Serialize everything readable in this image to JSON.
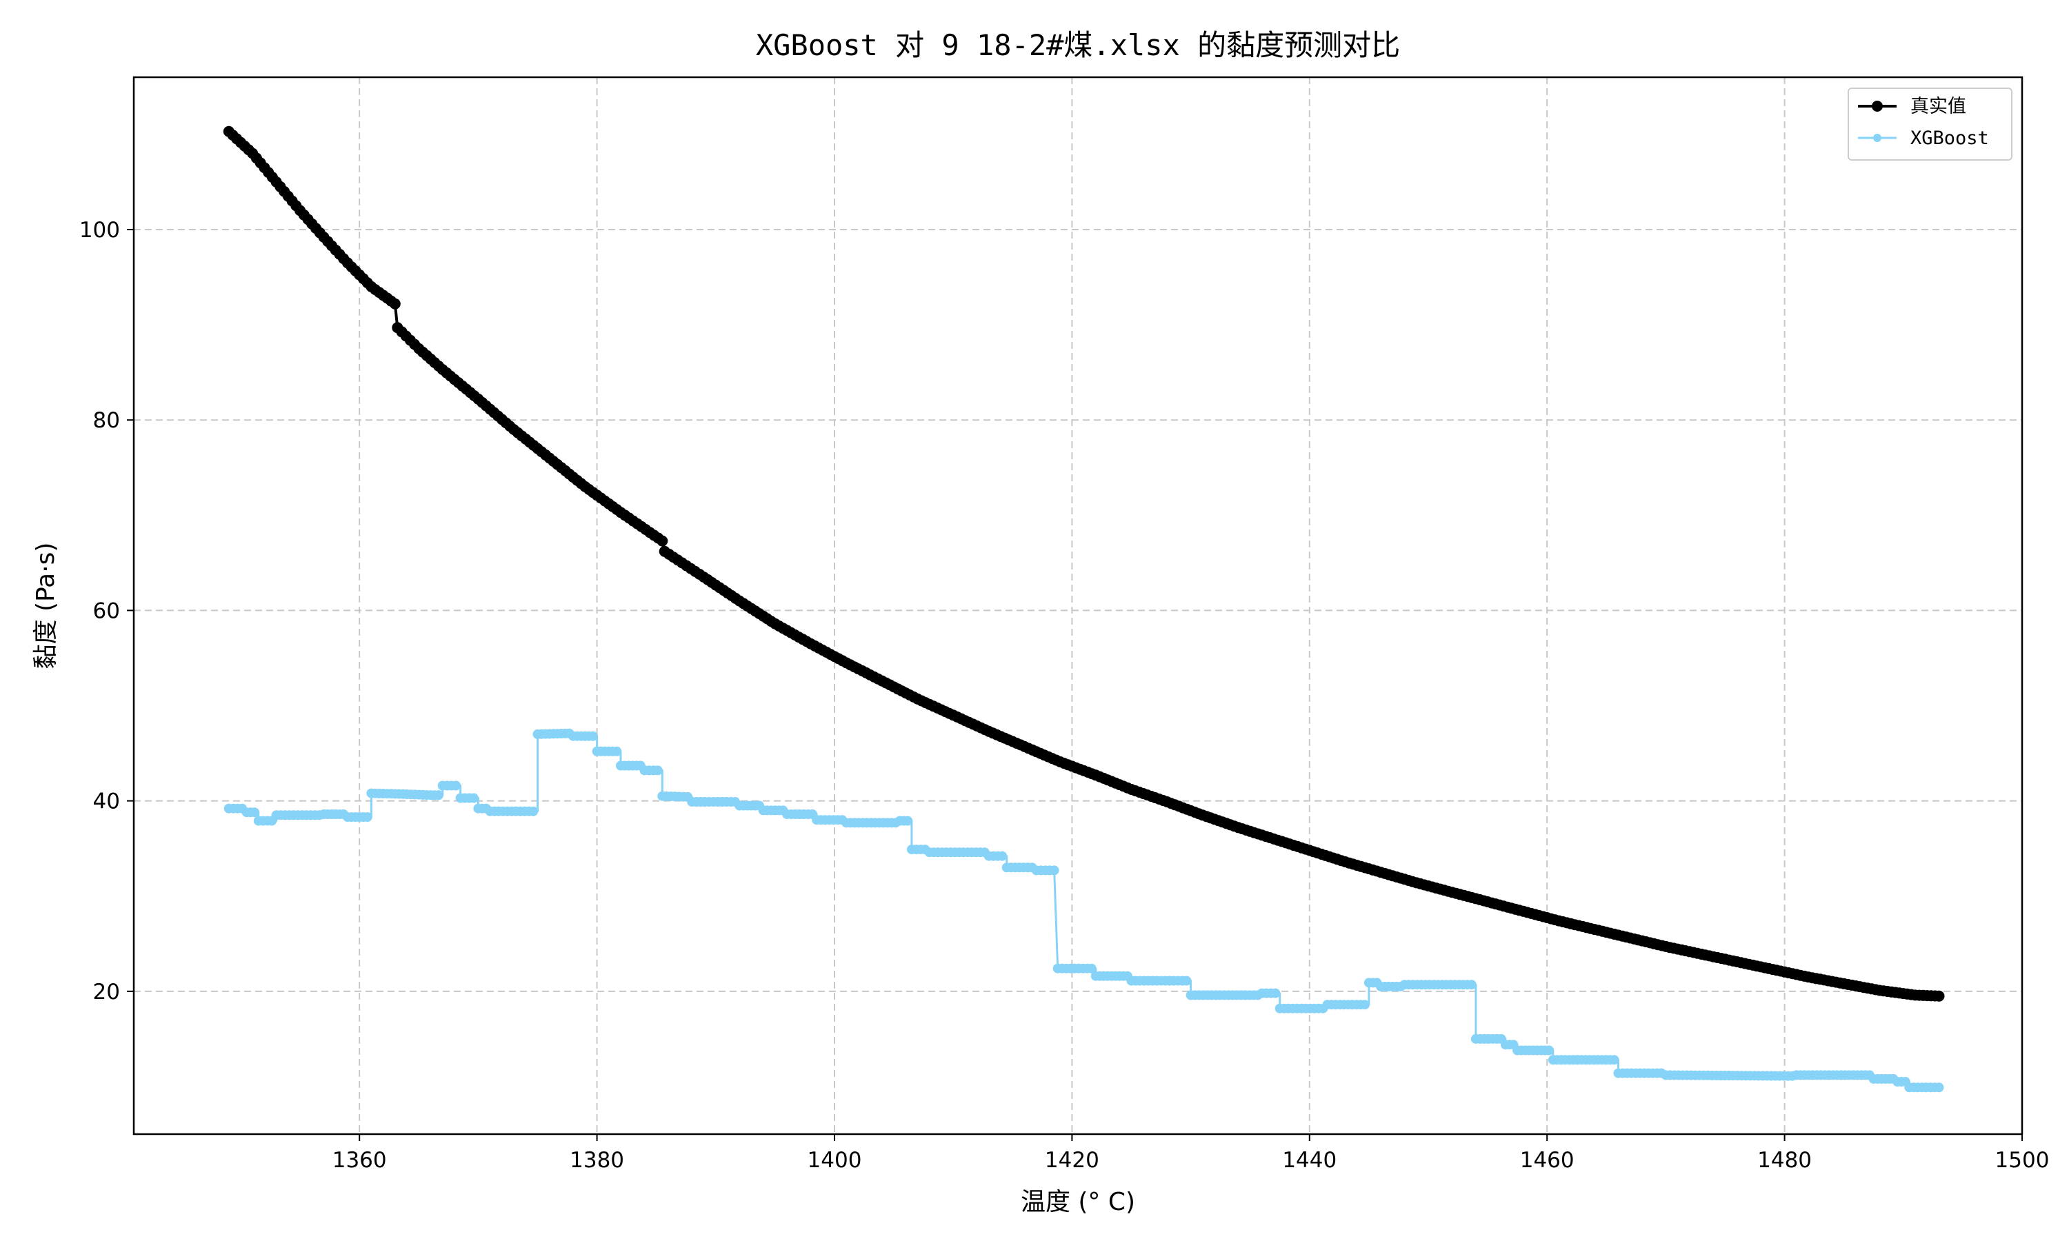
{
  "chart_data": {
    "type": "line",
    "title": "XGBoost 对 9 18-2#煤.xlsx 的黏度预测对比",
    "xlabel": "温度 (° C)",
    "ylabel": "黏度 (Pa·s)",
    "xlim": [
      1341,
      1500
    ],
    "ylim": [
      5,
      116
    ],
    "xticks": [
      1360,
      1380,
      1400,
      1420,
      1440,
      1460,
      1480,
      1500
    ],
    "yticks": [
      20,
      40,
      60,
      80,
      100
    ],
    "grid": true,
    "legend_position": "top-right",
    "series": [
      {
        "name": "真实值",
        "color": "#000000",
        "points": [
          [
            1349,
            110.3
          ],
          [
            1351,
            108
          ],
          [
            1353,
            105
          ],
          [
            1355,
            102
          ],
          [
            1357,
            99.2
          ],
          [
            1359,
            96.5
          ],
          [
            1361,
            94
          ],
          [
            1363,
            92.2
          ],
          [
            1363.2,
            89.7
          ],
          [
            1365,
            87.5
          ],
          [
            1367,
            85.3
          ],
          [
            1370,
            82.2
          ],
          [
            1373,
            79
          ],
          [
            1376,
            76
          ],
          [
            1379,
            73
          ],
          [
            1382,
            70.3
          ],
          [
            1385.5,
            67.3
          ],
          [
            1385.7,
            66.2
          ],
          [
            1389,
            63.5
          ],
          [
            1392,
            61
          ],
          [
            1395,
            58.6
          ],
          [
            1398,
            56.5
          ],
          [
            1401,
            54.5
          ],
          [
            1404,
            52.6
          ],
          [
            1407,
            50.7
          ],
          [
            1410,
            49
          ],
          [
            1413,
            47.3
          ],
          [
            1416,
            45.7
          ],
          [
            1419,
            44.1
          ],
          [
            1422,
            42.7
          ],
          [
            1425,
            41.2
          ],
          [
            1428,
            39.9
          ],
          [
            1431,
            38.5
          ],
          [
            1434,
            37.2
          ],
          [
            1437,
            36
          ],
          [
            1440,
            34.8
          ],
          [
            1443,
            33.6
          ],
          [
            1446,
            32.5
          ],
          [
            1449,
            31.4
          ],
          [
            1452,
            30.4
          ],
          [
            1455,
            29.4
          ],
          [
            1458,
            28.4
          ],
          [
            1461,
            27.4
          ],
          [
            1464,
            26.5
          ],
          [
            1467,
            25.6
          ],
          [
            1470,
            24.7
          ],
          [
            1473,
            23.9
          ],
          [
            1476,
            23.1
          ],
          [
            1479,
            22.3
          ],
          [
            1482,
            21.5
          ],
          [
            1485,
            20.8
          ],
          [
            1488,
            20.1
          ],
          [
            1491,
            19.6
          ],
          [
            1493,
            19.5
          ]
        ]
      },
      {
        "name": "XGBoost",
        "color": "#87d3f8",
        "points": [
          [
            1349,
            39.2
          ],
          [
            1350.5,
            39.2
          ],
          [
            1350.5,
            38.8
          ],
          [
            1351.5,
            38.8
          ],
          [
            1351.5,
            37.9
          ],
          [
            1353,
            37.9
          ],
          [
            1353,
            38.5
          ],
          [
            1357,
            38.5
          ],
          [
            1357,
            38.6
          ],
          [
            1359,
            38.6
          ],
          [
            1359,
            38.3
          ],
          [
            1361,
            38.3
          ],
          [
            1361,
            40.8
          ],
          [
            1364,
            40.7
          ],
          [
            1366,
            40.6
          ],
          [
            1367,
            40.6
          ],
          [
            1367,
            41.6
          ],
          [
            1368.5,
            41.6
          ],
          [
            1368.5,
            40.3
          ],
          [
            1370,
            40.3
          ],
          [
            1370,
            39.2
          ],
          [
            1371,
            39.2
          ],
          [
            1371,
            38.9
          ],
          [
            1375,
            38.9
          ],
          [
            1375,
            47.0
          ],
          [
            1378,
            47.1
          ],
          [
            1378,
            46.8
          ],
          [
            1380,
            46.8
          ],
          [
            1380,
            45.2
          ],
          [
            1382,
            45.2
          ],
          [
            1382,
            43.7
          ],
          [
            1384,
            43.7
          ],
          [
            1384,
            43.2
          ],
          [
            1385.5,
            43.2
          ],
          [
            1385.5,
            40.5
          ],
          [
            1388,
            40.4
          ],
          [
            1388,
            39.9
          ],
          [
            1392,
            39.9
          ],
          [
            1392,
            39.5
          ],
          [
            1394,
            39.5
          ],
          [
            1394,
            39.0
          ],
          [
            1396,
            39.0
          ],
          [
            1396,
            38.6
          ],
          [
            1398.5,
            38.6
          ],
          [
            1398.5,
            38.0
          ],
          [
            1401,
            38.0
          ],
          [
            1401,
            37.7
          ],
          [
            1405.5,
            37.7
          ],
          [
            1405.5,
            37.9
          ],
          [
            1406.5,
            37.9
          ],
          [
            1406.5,
            34.9
          ],
          [
            1408,
            34.9
          ],
          [
            1408,
            34.6
          ],
          [
            1413,
            34.6
          ],
          [
            1413,
            34.2
          ],
          [
            1414.5,
            34.2
          ],
          [
            1414.5,
            33.0
          ],
          [
            1417,
            33.0
          ],
          [
            1417,
            32.7
          ],
          [
            1418.5,
            32.7
          ],
          [
            1418.8,
            22.4
          ],
          [
            1422,
            22.4
          ],
          [
            1422,
            21.6
          ],
          [
            1425,
            21.6
          ],
          [
            1425,
            21.1
          ],
          [
            1430,
            21.1
          ],
          [
            1430,
            19.6
          ],
          [
            1436,
            19.6
          ],
          [
            1436,
            19.8
          ],
          [
            1437.5,
            19.8
          ],
          [
            1437.5,
            18.2
          ],
          [
            1441.5,
            18.2
          ],
          [
            1441.5,
            18.6
          ],
          [
            1445,
            18.6
          ],
          [
            1445,
            20.9
          ],
          [
            1446,
            20.9
          ],
          [
            1446,
            20.5
          ],
          [
            1448,
            20.5
          ],
          [
            1448,
            20.7
          ],
          [
            1454,
            20.7
          ],
          [
            1454,
            15.0
          ],
          [
            1456.5,
            15.0
          ],
          [
            1456.5,
            14.4
          ],
          [
            1457.5,
            14.4
          ],
          [
            1457.5,
            13.8
          ],
          [
            1460.5,
            13.8
          ],
          [
            1460.5,
            12.8
          ],
          [
            1466,
            12.8
          ],
          [
            1466,
            11.4
          ],
          [
            1470,
            11.4
          ],
          [
            1470,
            11.2
          ],
          [
            1481,
            11.1
          ],
          [
            1481,
            11.2
          ],
          [
            1487.5,
            11.2
          ],
          [
            1487.5,
            10.8
          ],
          [
            1489.5,
            10.8
          ],
          [
            1489.5,
            10.5
          ],
          [
            1490.5,
            10.5
          ],
          [
            1490.5,
            9.9
          ],
          [
            1493,
            9.9
          ]
        ]
      }
    ]
  }
}
